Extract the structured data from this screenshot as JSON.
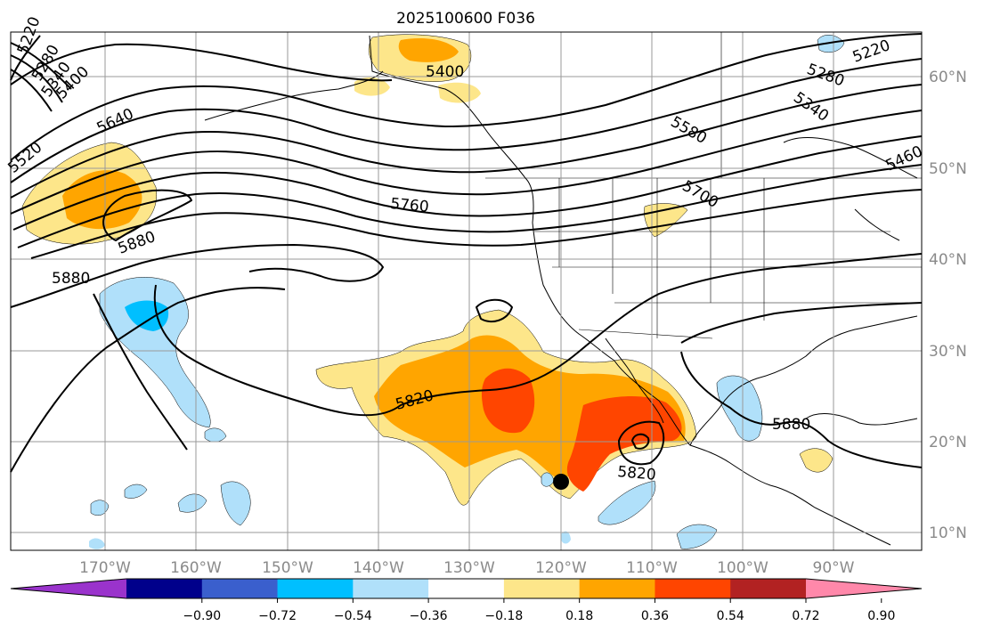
{
  "title": "2025100600 F036",
  "lon_labels": [
    "170°W",
    "160°W",
    "150°W",
    "140°W",
    "130°W",
    "120°W",
    "110°W",
    "100°W",
    "90°W"
  ],
  "lat_labels": [
    "60°N",
    "50°N",
    "40°N",
    "30°N",
    "20°N",
    "10°N"
  ],
  "contour_labels": [
    "5220",
    "5280",
    "5340",
    "5400",
    "5400",
    "5220",
    "5280",
    "5340",
    "5460",
    "5580",
    "5640",
    "5700",
    "5760",
    "5880",
    "5880",
    "5820",
    "5820",
    "5880",
    "5520"
  ],
  "colorbar": {
    "colors": [
      "#9a33cc",
      "#00008b",
      "#3a5fcd",
      "#00bfff",
      "#b0e0fa",
      "#ffffff",
      "#fde68a",
      "#ffa500",
      "#ff4500",
      "#b22222",
      "#ff88aa"
    ],
    "ticks": [
      "−0.90",
      "−0.72",
      "−0.54",
      "−0.36",
      "−0.18",
      "0.18",
      "0.36",
      "0.54",
      "0.72",
      "0.90"
    ]
  },
  "marker": "black-dot"
}
